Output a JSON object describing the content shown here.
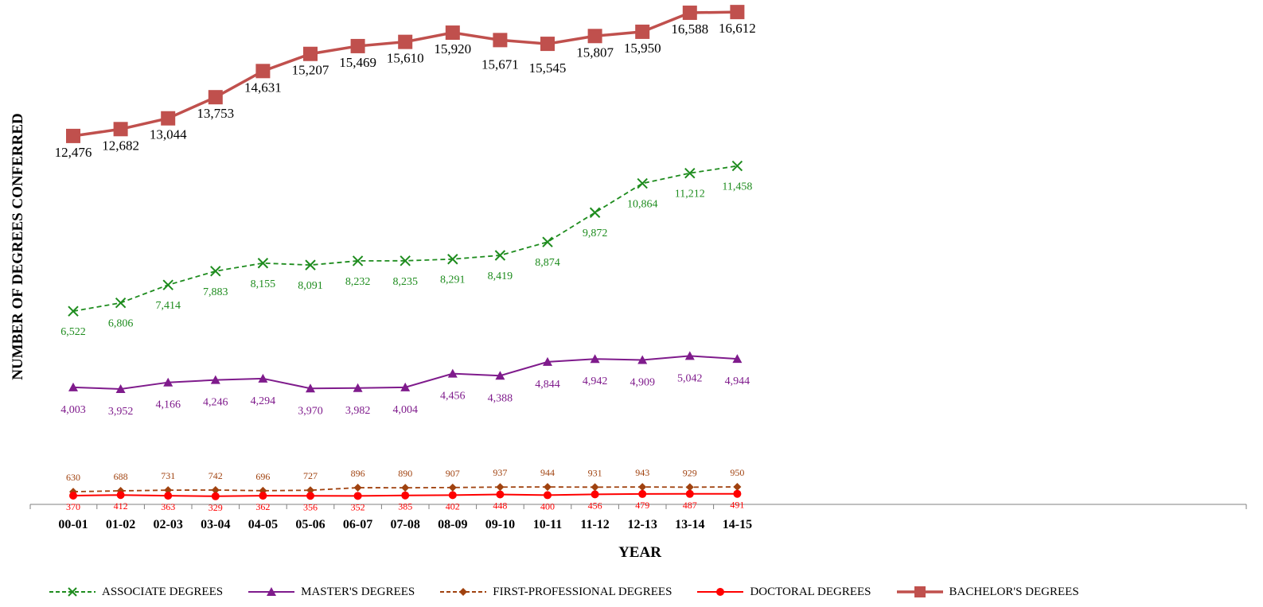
{
  "chart_data": {
    "type": "line",
    "title": "",
    "xlabel": "YEAR",
    "ylabel": "NUMBER OF DEGREES CONFERRED",
    "categories": [
      "00-01",
      "01-02",
      "02-03",
      "03-04",
      "04-05",
      "05-06",
      "06-07",
      "07-08",
      "08-09",
      "09-10",
      "10-11",
      "11-12",
      "12-13",
      "13-14",
      "14-15"
    ],
    "grid": false,
    "legend_position": "bottom",
    "series": [
      {
        "key": "bachelors",
        "name": "BACHELOR'S DEGREES",
        "color": "#c0504d",
        "marker": "square",
        "dash": "solid",
        "values": [
          12476,
          12682,
          13044,
          13753,
          14631,
          15207,
          15469,
          15610,
          15920,
          15671,
          15545,
          15807,
          15950,
          16588,
          16612
        ],
        "labels": [
          "12,476",
          "12,682",
          "13,044",
          "13,753",
          "14,631",
          "15,207",
          "15,469",
          "15,610",
          "15,920",
          "15,671",
          "15,545",
          "15,807",
          "15,950",
          "16,588",
          "16,612"
        ]
      },
      {
        "key": "associate",
        "name": "ASSOCIATE DEGREES",
        "color": "#1e8c1e",
        "marker": "x",
        "dash": "dashed",
        "values": [
          6522,
          6806,
          7414,
          7883,
          8155,
          8091,
          8232,
          8235,
          8291,
          8419,
          8874,
          9872,
          10864,
          11212,
          11458
        ],
        "labels": [
          "6,522",
          "6,806",
          "7,414",
          "7,883",
          "8,155",
          "8,091",
          "8,232",
          "8,235",
          "8,291",
          "8,419",
          "8,874",
          "9,872",
          "10,864",
          "11,212",
          "11,458"
        ]
      },
      {
        "key": "masters",
        "name": "MASTER'S DEGREES",
        "color": "#7f1b8c",
        "marker": "triangle",
        "dash": "solid",
        "values": [
          4003,
          3952,
          4166,
          4246,
          4294,
          3970,
          3982,
          4004,
          4456,
          4388,
          4844,
          4942,
          4909,
          5042,
          4944
        ],
        "labels": [
          "4,003",
          "3,952",
          "4,166",
          "4,246",
          "4,294",
          "3,970",
          "3,982",
          "4,004",
          "4,456",
          "4,388",
          "4,844",
          "4,942",
          "4,909",
          "5,042",
          "4,944"
        ]
      },
      {
        "key": "firstprof",
        "name": "FIRST-PROFESSIONAL DEGREES",
        "color": "#a0420f",
        "marker": "diamond",
        "dash": "dashed",
        "values": [
          630,
          688,
          731,
          742,
          696,
          727,
          896,
          890,
          907,
          937,
          944,
          931,
          943,
          929,
          950
        ],
        "labels": [
          "630",
          "688",
          "731",
          "742",
          "696",
          "727",
          "896",
          "890",
          "907",
          "937",
          "944",
          "931",
          "943",
          "929",
          "950"
        ]
      },
      {
        "key": "doctoral",
        "name": "DOCTORAL DEGREES",
        "color": "#ff0000",
        "marker": "circle",
        "dash": "solid",
        "values": [
          370,
          412,
          363,
          329,
          362,
          356,
          352,
          385,
          402,
          448,
          400,
          456,
          479,
          487,
          491
        ],
        "labels": [
          "370",
          "412",
          "363",
          "329",
          "362",
          "356",
          "352",
          "385",
          "402",
          "448",
          "400",
          "456",
          "479",
          "487",
          "491"
        ]
      }
    ],
    "legend_order": [
      "associate",
      "masters",
      "firstprof",
      "doctoral",
      "bachelors"
    ]
  }
}
